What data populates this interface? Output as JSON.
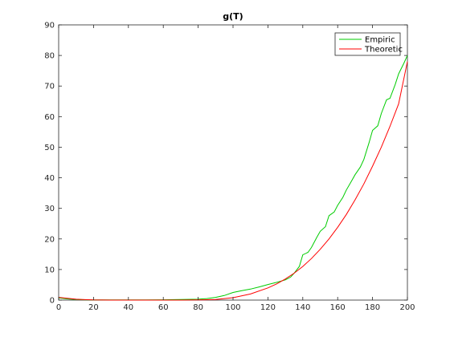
{
  "chart_data": {
    "type": "line",
    "title": "g(T)",
    "xlabel": "",
    "ylabel": "",
    "xlim": [
      0,
      200
    ],
    "ylim": [
      0,
      90
    ],
    "xticks": [
      0,
      20,
      40,
      60,
      80,
      100,
      120,
      140,
      160,
      180,
      200
    ],
    "yticks": [
      0,
      10,
      20,
      30,
      40,
      50,
      60,
      70,
      80,
      90
    ],
    "grid": false,
    "legend_position": "top-right",
    "series": [
      {
        "name": "Empiric",
        "color": "#00cc00",
        "x": [
          0,
          5,
          10,
          15,
          20,
          30,
          40,
          50,
          60,
          70,
          80,
          85,
          90,
          95,
          100,
          105,
          110,
          115,
          120,
          125,
          130,
          133,
          135,
          138,
          140,
          143,
          145,
          148,
          150,
          153,
          155,
          158,
          160,
          163,
          165,
          168,
          170,
          173,
          175,
          178,
          180,
          183,
          185,
          188,
          190,
          193,
          195,
          198,
          200
        ],
        "y": [
          0.7,
          0.4,
          0.2,
          0.1,
          0.05,
          0.05,
          0.05,
          0.05,
          0.1,
          0.2,
          0.3,
          0.5,
          0.9,
          1.5,
          2.5,
          3.1,
          3.6,
          4.3,
          5.1,
          5.8,
          6.6,
          7.5,
          8.8,
          11.0,
          14.8,
          15.6,
          17.2,
          20.5,
          22.5,
          24.0,
          27.6,
          28.8,
          31.0,
          33.6,
          36.0,
          39.0,
          41.0,
          43.5,
          46.0,
          51.5,
          55.5,
          57.0,
          61.0,
          65.5,
          66.0,
          70.5,
          74.0,
          77.5,
          80.0
        ]
      },
      {
        "name": "Theoretic",
        "color": "#ff0000",
        "x": [
          0,
          5,
          10,
          15,
          20,
          30,
          40,
          50,
          60,
          70,
          80,
          90,
          100,
          110,
          120,
          125,
          130,
          135,
          140,
          145,
          150,
          155,
          160,
          165,
          170,
          175,
          180,
          185,
          190,
          195,
          200
        ],
        "y": [
          0.9,
          0.6,
          0.3,
          0.15,
          0.05,
          0.0,
          0.0,
          0.0,
          0.0,
          0.0,
          0.05,
          0.2,
          0.8,
          2.0,
          4.0,
          5.3,
          6.9,
          8.8,
          11.0,
          13.6,
          16.6,
          20.0,
          23.8,
          28.0,
          32.8,
          38.0,
          43.8,
          50.0,
          56.8,
          64.2,
          78.0
        ]
      }
    ]
  }
}
